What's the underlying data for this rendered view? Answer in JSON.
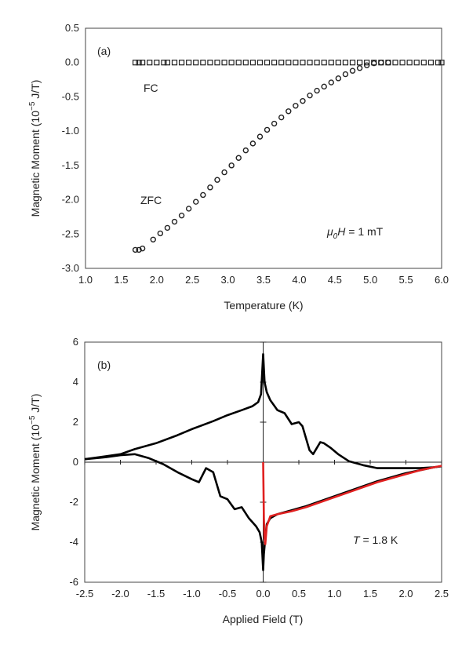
{
  "chart_data": [
    {
      "type": "scatter",
      "panel_label": "(a)",
      "xlabel": "Temperature  (K)",
      "ylabel_main": "Magnetic Moment  (10",
      "ylabel_sup": "−5",
      "ylabel_unit": " J/T)",
      "xlim": [
        1.0,
        6.0
      ],
      "ylim": [
        -3.0,
        0.5
      ],
      "xticks": [
        "1.0",
        "1.5",
        "2.0",
        "2.5",
        "3.0",
        "3.5",
        "4.0",
        "4.5",
        "5.0",
        "5.5",
        "6.0"
      ],
      "yticks": [
        "0.5",
        "0.0",
        "-0.5",
        "-1.0",
        "-1.5",
        "-2.0",
        "-2.5",
        "-3.0"
      ],
      "series": [
        {
          "name": "FC",
          "marker": "square",
          "x": [
            1.7,
            1.75,
            1.8,
            1.9,
            2.0,
            2.1,
            2.15,
            2.25,
            2.35,
            2.45,
            2.55,
            2.65,
            2.75,
            2.85,
            2.95,
            3.05,
            3.15,
            3.25,
            3.35,
            3.45,
            3.55,
            3.65,
            3.75,
            3.85,
            3.95,
            4.05,
            4.15,
            4.25,
            4.35,
            4.45,
            4.55,
            4.65,
            4.75,
            4.85,
            4.95,
            5.05,
            5.15,
            5.25,
            5.35,
            5.45,
            5.55,
            5.65,
            5.75,
            5.85,
            5.95,
            6.0
          ],
          "y": [
            0,
            0,
            0,
            0,
            0,
            0,
            0,
            0,
            0,
            0,
            0,
            0,
            0,
            0,
            0,
            0,
            0,
            0,
            0,
            0,
            0,
            0,
            0,
            0,
            0,
            0,
            0,
            0,
            0,
            0,
            0,
            0,
            0,
            0,
            0,
            0,
            0,
            0,
            0,
            0,
            0,
            0,
            0,
            0,
            0,
            0
          ]
        },
        {
          "name": "ZFC",
          "marker": "circle",
          "x": [
            1.7,
            1.75,
            1.8,
            1.95,
            2.05,
            2.15,
            2.25,
            2.35,
            2.45,
            2.55,
            2.65,
            2.75,
            2.85,
            2.95,
            3.05,
            3.15,
            3.25,
            3.35,
            3.45,
            3.55,
            3.65,
            3.75,
            3.85,
            3.95,
            4.05,
            4.15,
            4.25,
            4.35,
            4.45,
            4.55,
            4.65,
            4.75,
            4.85,
            4.95,
            5.05,
            5.15,
            5.25
          ],
          "y": [
            -2.73,
            -2.73,
            -2.71,
            -2.58,
            -2.49,
            -2.41,
            -2.32,
            -2.23,
            -2.13,
            -2.03,
            -1.93,
            -1.82,
            -1.71,
            -1.6,
            -1.5,
            -1.39,
            -1.28,
            -1.18,
            -1.08,
            -0.98,
            -0.89,
            -0.8,
            -0.71,
            -0.63,
            -0.56,
            -0.48,
            -0.41,
            -0.35,
            -0.29,
            -0.23,
            -0.17,
            -0.12,
            -0.08,
            -0.04,
            -0.01,
            0.0,
            0.0
          ]
        }
      ],
      "annotations": {
        "fc": "FC",
        "zfc": "ZFC",
        "field_symbol": "μ",
        "field_sub": "0",
        "field_h": "H",
        "field_value": " = 1 mT"
      }
    },
    {
      "type": "line",
      "panel_label": "(b)",
      "xlabel": "Applied Field (T)",
      "ylabel_main": "Magnetic Moment  (10",
      "ylabel_sup": "−5",
      "ylabel_unit": " J/T)",
      "xlim": [
        -2.5,
        2.5
      ],
      "ylim": [
        -6,
        6
      ],
      "xticks": [
        "-2.5",
        "-2.0",
        "-1.5",
        "-1.0",
        "-0.5",
        "0.0",
        "0.5",
        "1.0",
        "1.5",
        "2.0",
        "2.5"
      ],
      "yticks": [
        "6",
        "4",
        "2",
        "0",
        "-2",
        "-4",
        "-6"
      ],
      "series": [
        {
          "color": "#000000",
          "x": [
            -2.5,
            -2.2,
            -2.0,
            -1.8,
            -1.5,
            -1.2,
            -1.0,
            -0.7,
            -0.5,
            -0.3,
            -0.15,
            -0.07,
            -0.03,
            0.0,
            0.01,
            0.02,
            0.05,
            0.1,
            0.15,
            0.2,
            0.3,
            0.4,
            0.5,
            0.55,
            0.65,
            0.7,
            0.75,
            0.8,
            0.85,
            0.95,
            1.05,
            1.2,
            1.4,
            1.6,
            1.8,
            2.0,
            2.2,
            2.4,
            2.5
          ],
          "y": [
            0.15,
            0.3,
            0.4,
            0.65,
            0.95,
            1.35,
            1.65,
            2.05,
            2.35,
            2.6,
            2.8,
            3.0,
            3.4,
            5.4,
            4.7,
            4.0,
            3.5,
            3.1,
            2.85,
            2.6,
            2.45,
            1.9,
            2.0,
            1.8,
            0.6,
            0.4,
            0.7,
            1.0,
            0.95,
            0.7,
            0.4,
            0.05,
            -0.15,
            -0.3,
            -0.3,
            -0.3,
            -0.3,
            -0.25,
            -0.2
          ]
        },
        {
          "color": "#000000",
          "x": [
            -2.5,
            -2.2,
            -2.0,
            -1.8,
            -1.6,
            -1.4,
            -1.2,
            -1.0,
            -0.9,
            -0.8,
            -0.7,
            -0.6,
            -0.5,
            -0.4,
            -0.3,
            -0.2,
            -0.1,
            -0.05,
            -0.02,
            0.0,
            0.01,
            0.03,
            0.05,
            0.1,
            0.2,
            0.4,
            0.6,
            0.8,
            1.0,
            1.2,
            1.4,
            1.6,
            1.8,
            2.0,
            2.2,
            2.4,
            2.5
          ],
          "y": [
            0.15,
            0.25,
            0.35,
            0.4,
            0.2,
            -0.1,
            -0.5,
            -0.85,
            -1.0,
            -0.3,
            -0.5,
            -1.7,
            -1.85,
            -2.35,
            -2.25,
            -2.8,
            -3.2,
            -3.5,
            -4.0,
            -5.4,
            -4.6,
            -3.8,
            -3.1,
            -2.8,
            -2.6,
            -2.4,
            -2.2,
            -1.95,
            -1.7,
            -1.45,
            -1.2,
            -0.95,
            -0.75,
            -0.55,
            -0.4,
            -0.25,
            -0.2
          ]
        },
        {
          "color": "#e02020",
          "x": [
            0.0,
            0.005,
            0.01,
            0.02,
            0.03,
            0.05,
            0.1,
            0.2,
            0.4,
            0.6,
            0.8,
            1.0,
            1.2,
            1.4,
            1.6,
            1.8,
            2.0,
            2.2,
            2.4,
            2.5
          ],
          "y": [
            0.0,
            -1.5,
            -2.8,
            -3.8,
            -4.1,
            -3.2,
            -2.7,
            -2.6,
            -2.45,
            -2.25,
            -2.0,
            -1.75,
            -1.5,
            -1.25,
            -1.0,
            -0.8,
            -0.6,
            -0.4,
            -0.25,
            -0.18
          ]
        }
      ],
      "annotations": {
        "temp_t": "T",
        "temp_value": " = 1.8 K"
      }
    }
  ]
}
